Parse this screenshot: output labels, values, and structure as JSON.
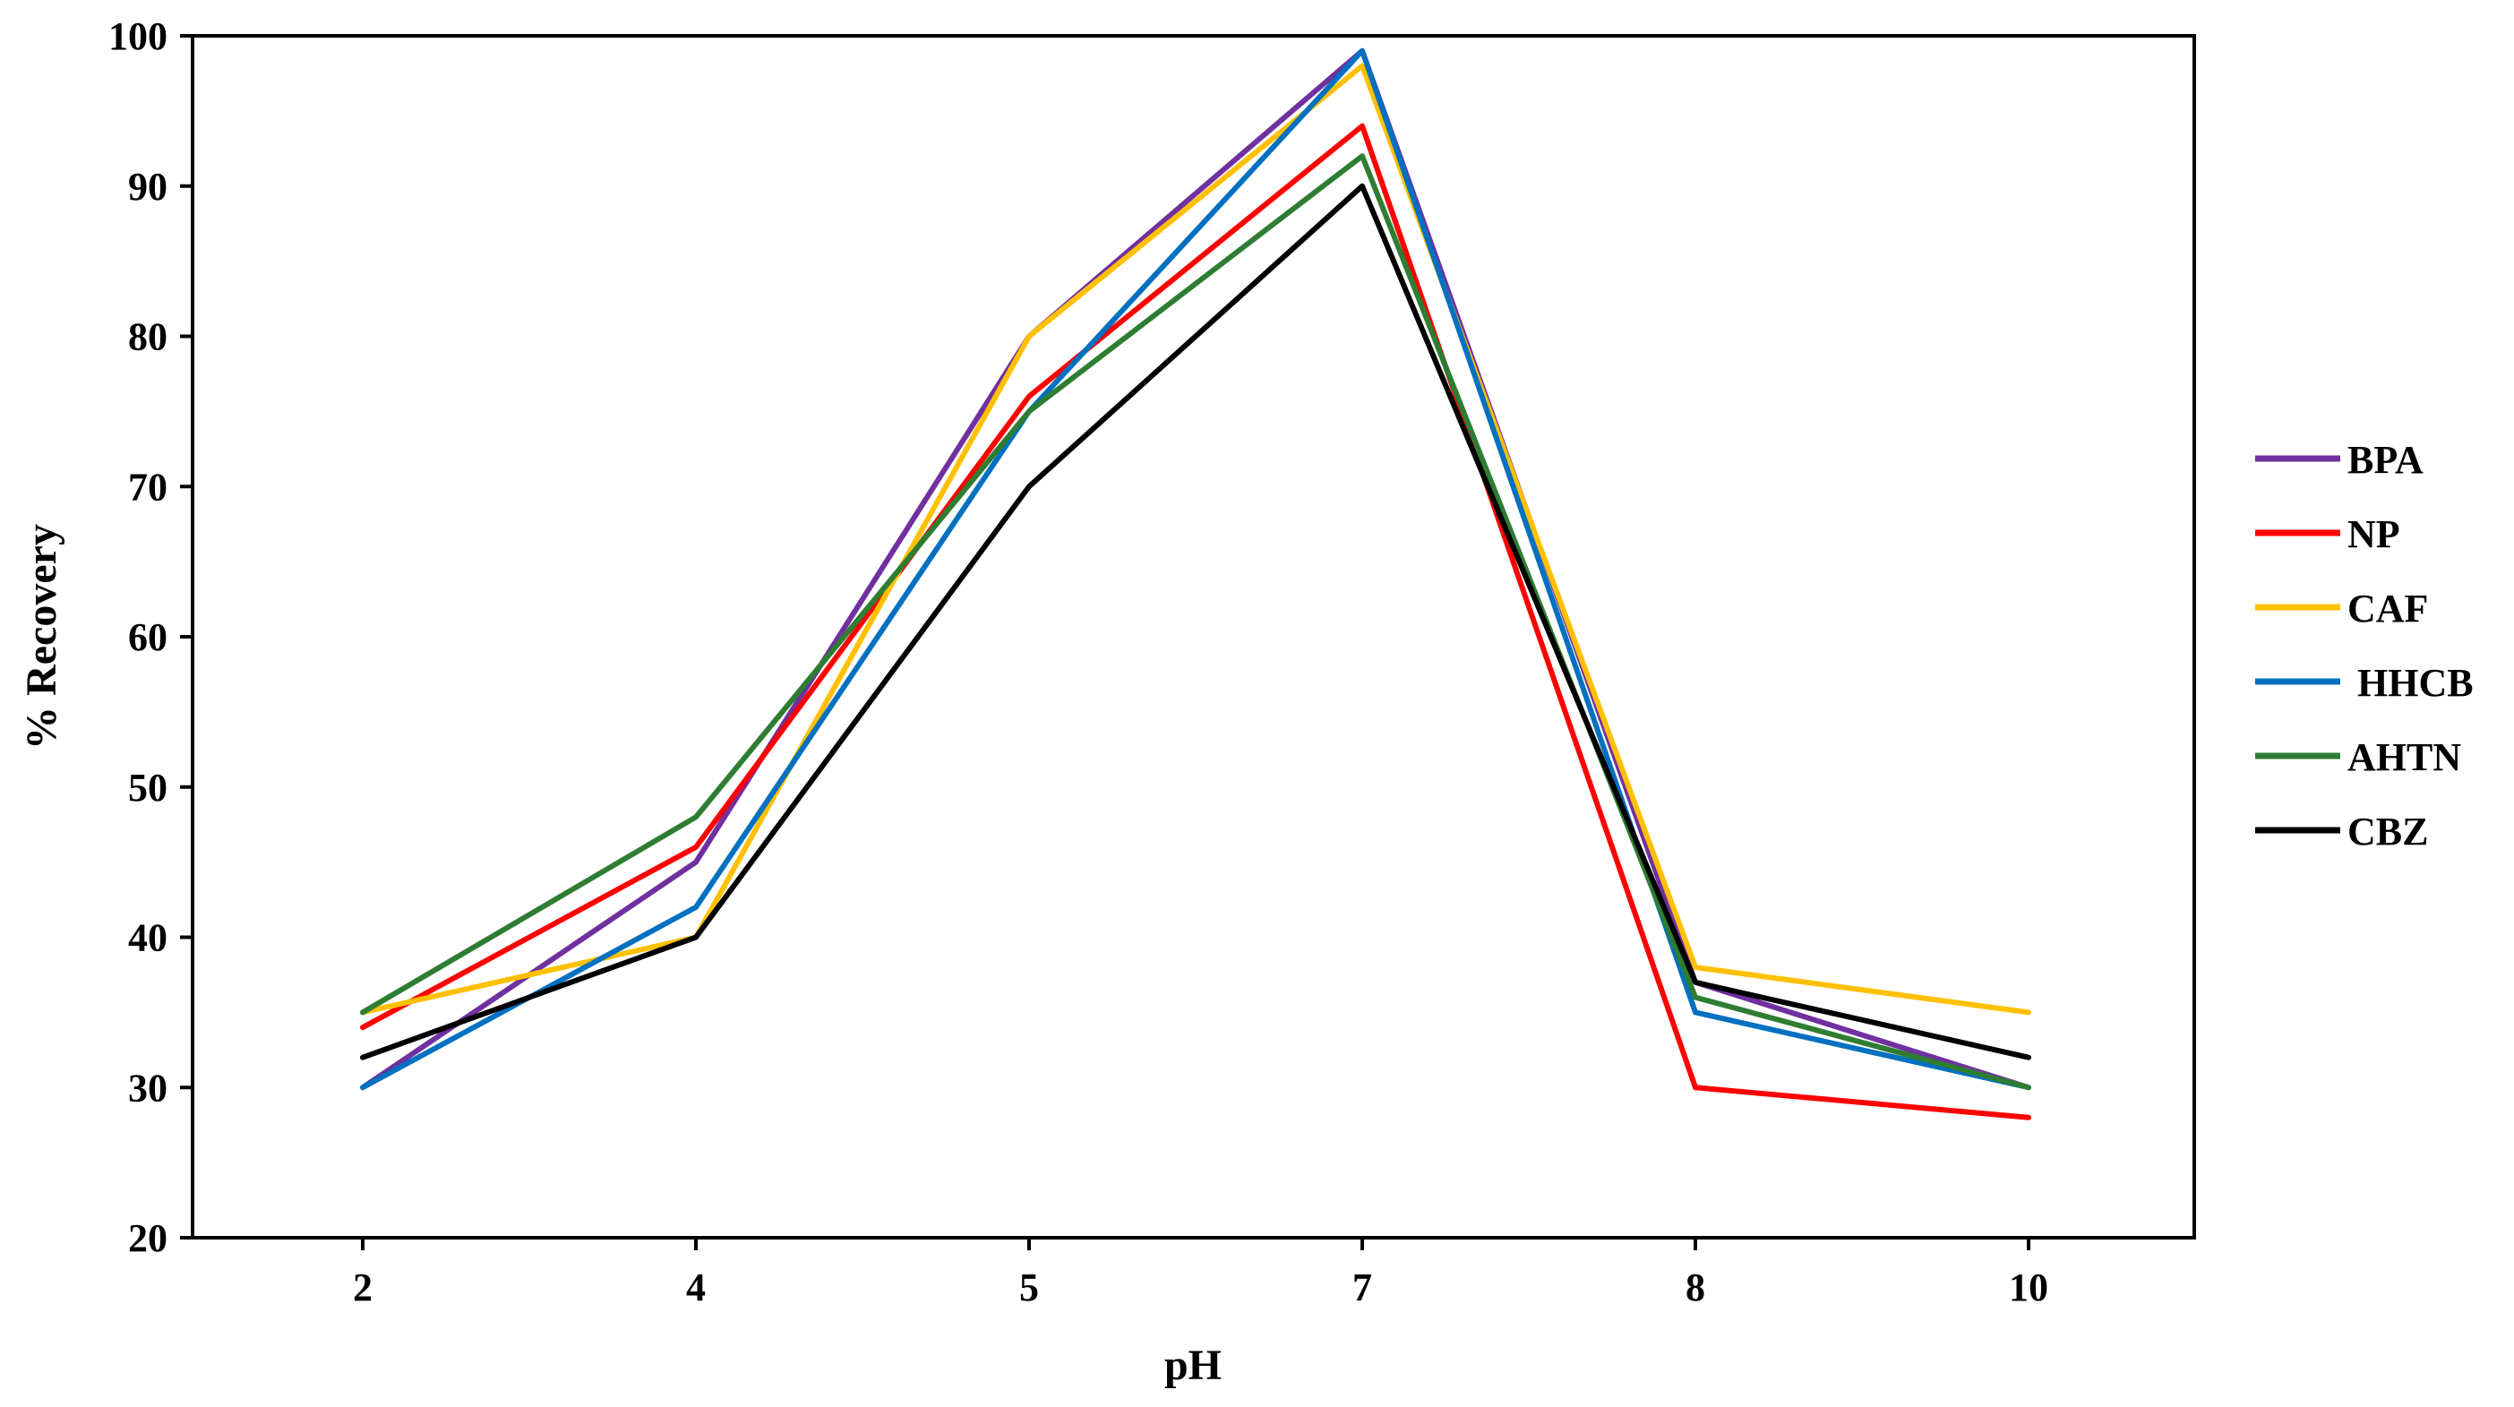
{
  "chart_data": {
    "type": "line",
    "title": "",
    "xlabel": "pH",
    "ylabel": "% Recovery",
    "categories": [
      "2",
      "4",
      "5",
      "7",
      "8",
      "10"
    ],
    "ylim": [
      20,
      100
    ],
    "yticks": [
      "20",
      "30",
      "40",
      "50",
      "60",
      "70",
      "80",
      "90",
      "100"
    ],
    "grid": false,
    "legend_position": "right",
    "series": [
      {
        "name": "BPA",
        "color": "#7030A0",
        "values": [
          30,
          45,
          80,
          99,
          37,
          30
        ]
      },
      {
        "name": "NP",
        "color": "#FF0000",
        "values": [
          34,
          46,
          76,
          94,
          30,
          28
        ]
      },
      {
        "name": "CAF",
        "color": "#FFC000",
        "values": [
          35,
          40,
          80,
          98,
          38,
          35
        ]
      },
      {
        "name": " HHCB",
        "color": "#0070C0",
        "values": [
          30,
          42,
          75,
          99,
          35,
          30
        ]
      },
      {
        "name": "AHTN",
        "color": "#2E7D32",
        "values": [
          35,
          48,
          75,
          92,
          36,
          30
        ]
      },
      {
        "name": "CBZ",
        "color": "#000000",
        "values": [
          32,
          40,
          70,
          90,
          37,
          32
        ]
      }
    ]
  }
}
